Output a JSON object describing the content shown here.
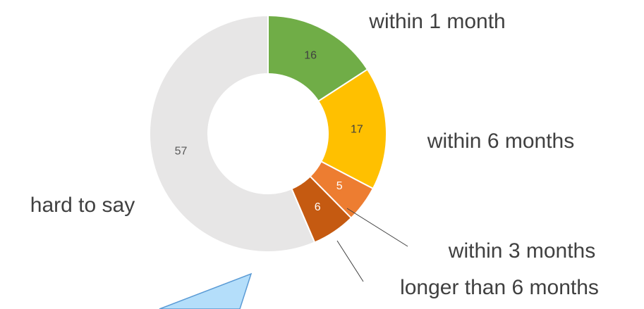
{
  "chart_data": {
    "type": "donut",
    "categories": [
      "within 1 month",
      "within 6 months",
      "within 3 months",
      "longer than 6 months",
      "hard to say"
    ],
    "values": [
      16,
      17,
      5,
      6,
      57
    ],
    "colors": [
      "#70ad47",
      "#ffc000",
      "#ed7d31",
      "#c55a11",
      "#e7e6e6"
    ],
    "label_colors": [
      "#404040",
      "#404040",
      "#ffffff",
      "#ffffff",
      "#595959"
    ]
  }
}
